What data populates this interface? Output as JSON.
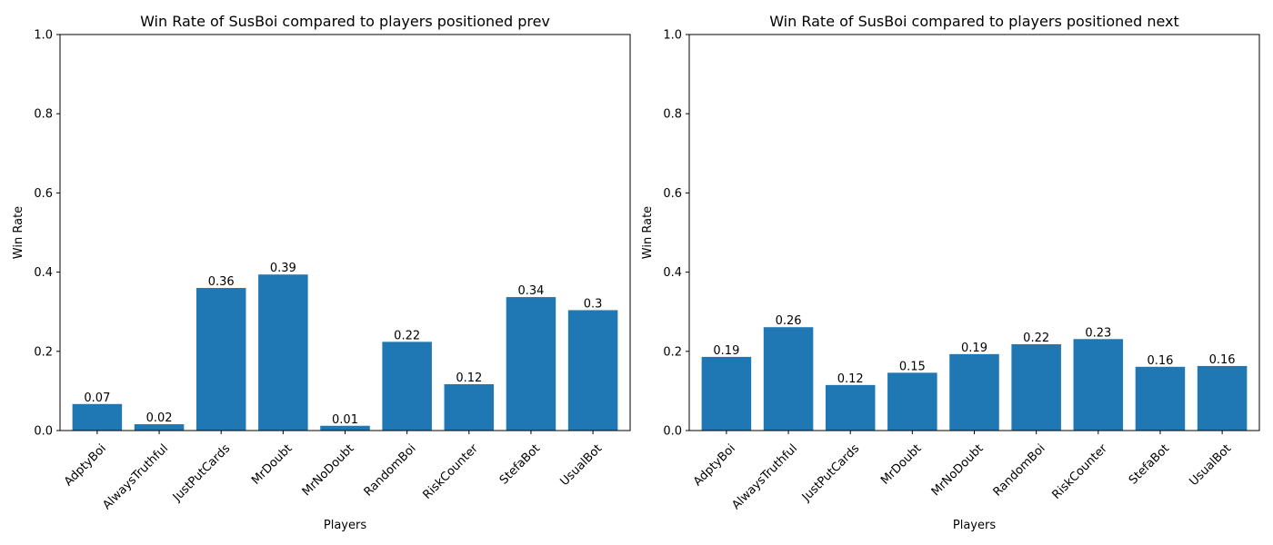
{
  "chart_data": [
    {
      "type": "bar",
      "title": "Win Rate of SusBoi compared to players positioned prev",
      "xlabel": "Players",
      "ylabel": "Win Rate",
      "ylim": [
        0,
        1
      ],
      "yticks": [
        0.0,
        0.2,
        0.4,
        0.6,
        0.8,
        1.0
      ],
      "ytick_labels": [
        "0.0",
        "0.2",
        "0.4",
        "0.6",
        "0.8",
        "1.0"
      ],
      "grid": false,
      "color": "#1f77b4",
      "categories": [
        "AdptyBoi",
        "AlwaysTruthful",
        "JustPutCards",
        "MrDoubt",
        "MrNoDoubt",
        "RandomBoi",
        "RiskCounter",
        "StefaBot",
        "UsualBot"
      ],
      "values": [
        0.067,
        0.016,
        0.36,
        0.394,
        0.012,
        0.224,
        0.117,
        0.337,
        0.304
      ],
      "value_labels": [
        "0.07",
        "0.02",
        "0.36",
        "0.39",
        "0.01",
        "0.22",
        "0.12",
        "0.34",
        "0.3"
      ]
    },
    {
      "type": "bar",
      "title": "Win Rate of SusBoi compared to players positioned next",
      "xlabel": "Players",
      "ylabel": "Win Rate",
      "ylim": [
        0,
        1
      ],
      "yticks": [
        0.0,
        0.2,
        0.4,
        0.6,
        0.8,
        1.0
      ],
      "ytick_labels": [
        "0.0",
        "0.2",
        "0.4",
        "0.6",
        "0.8",
        "1.0"
      ],
      "grid": false,
      "color": "#1f77b4",
      "categories": [
        "AdptyBoi",
        "AlwaysTruthful",
        "JustPutCards",
        "MrDoubt",
        "MrNoDoubt",
        "RandomBoi",
        "RiskCounter",
        "StefaBot",
        "UsualBot"
      ],
      "values": [
        0.186,
        0.261,
        0.115,
        0.146,
        0.193,
        0.218,
        0.231,
        0.161,
        0.163
      ],
      "value_labels": [
        "0.19",
        "0.26",
        "0.12",
        "0.15",
        "0.19",
        "0.22",
        "0.23",
        "0.16",
        "0.16"
      ]
    }
  ]
}
